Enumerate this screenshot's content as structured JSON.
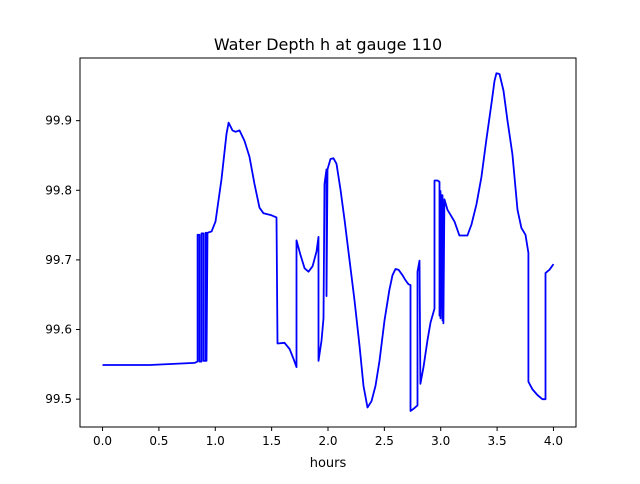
{
  "chart_data": {
    "type": "line",
    "title": "Water Depth h at gauge 110",
    "xlabel": "hours",
    "ylabel": "",
    "xlim": [
      -0.2,
      4.2
    ],
    "ylim": [
      99.46,
      99.99
    ],
    "xticks": [
      0.0,
      0.5,
      1.0,
      1.5,
      2.0,
      2.5,
      3.0,
      3.5,
      4.0
    ],
    "xtick_labels": [
      "0.0",
      "0.5",
      "1.0",
      "1.5",
      "2.0",
      "2.5",
      "3.0",
      "3.5",
      "4.0"
    ],
    "yticks": [
      99.5,
      99.6,
      99.7,
      99.8,
      99.9
    ],
    "ytick_labels": [
      "99.5",
      "99.6",
      "99.7",
      "99.8",
      "99.9"
    ],
    "grid": false,
    "series": [
      {
        "name": "h",
        "color": "#0000ff",
        "x": [
          0,
          0.417,
          0.816,
          0.843,
          0.843,
          0.86,
          0.86,
          0.878,
          0.878,
          0.896,
          0.896,
          0.914,
          0.914,
          0.922,
          0.922,
          0.931,
          0.967,
          1.002,
          1.055,
          1.1,
          1.118,
          1.153,
          1.18,
          1.215,
          1.259,
          1.304,
          1.348,
          1.392,
          1.428,
          1.499,
          1.543,
          1.552,
          1.614,
          1.659,
          1.694,
          1.721,
          1.721,
          1.756,
          1.792,
          1.827,
          1.863,
          1.898,
          1.916,
          1.916,
          1.942,
          1.96,
          1.969,
          1.987,
          1.987,
          1.996,
          2.022,
          2.049,
          2.075,
          2.111,
          2.146,
          2.191,
          2.235,
          2.279,
          2.315,
          2.35,
          2.386,
          2.421,
          2.457,
          2.501,
          2.545,
          2.572,
          2.599,
          2.625,
          2.661,
          2.687,
          2.714,
          2.732,
          2.732,
          2.758,
          2.794,
          2.794,
          2.812,
          2.82,
          2.847,
          2.882,
          2.909,
          2.936,
          2.945,
          2.945,
          2.971,
          2.989,
          2.989,
          2.998,
          2.998,
          3.007,
          3.016,
          3.016,
          3.024,
          3.033,
          3.06,
          3.122,
          3.166,
          3.202,
          3.237,
          3.273,
          3.317,
          3.361,
          3.406,
          3.45,
          3.477,
          3.494,
          3.521,
          3.557,
          3.592,
          3.636,
          3.681,
          3.716,
          3.752,
          3.778,
          3.778,
          3.814,
          3.858,
          3.902,
          3.929,
          3.929,
          3.965,
          4.0
        ],
        "y": [
          99.549,
          99.549,
          99.552,
          99.554,
          99.736,
          99.736,
          99.554,
          99.554,
          99.738,
          99.738,
          99.555,
          99.555,
          99.739,
          99.739,
          99.555,
          99.739,
          99.741,
          99.755,
          99.816,
          99.881,
          99.897,
          99.886,
          99.884,
          99.886,
          99.871,
          99.848,
          99.809,
          99.775,
          99.767,
          99.764,
          99.761,
          99.58,
          99.581,
          99.572,
          99.558,
          99.546,
          99.728,
          99.707,
          99.688,
          99.683,
          99.691,
          99.712,
          99.733,
          99.555,
          99.584,
          99.616,
          99.809,
          99.83,
          99.648,
          99.83,
          99.845,
          99.846,
          99.838,
          99.801,
          99.758,
          99.7,
          99.642,
          99.577,
          99.519,
          99.488,
          99.497,
          99.519,
          99.555,
          99.613,
          99.657,
          99.678,
          99.687,
          99.686,
          99.678,
          99.671,
          99.665,
          99.664,
          99.483,
          99.486,
          99.491,
          99.683,
          99.699,
          99.522,
          99.546,
          99.584,
          99.61,
          99.625,
          99.63,
          99.814,
          99.814,
          99.812,
          99.62,
          99.799,
          99.616,
          99.793,
          99.613,
          99.793,
          99.609,
          99.787,
          99.772,
          99.755,
          99.735,
          99.735,
          99.735,
          99.751,
          99.78,
          99.819,
          99.874,
          99.925,
          99.957,
          99.968,
          99.967,
          99.943,
          99.9,
          99.852,
          99.772,
          99.746,
          99.736,
          99.71,
          99.525,
          99.514,
          99.506,
          99.5,
          99.5,
          99.681,
          99.686,
          99.694
        ]
      }
    ]
  }
}
